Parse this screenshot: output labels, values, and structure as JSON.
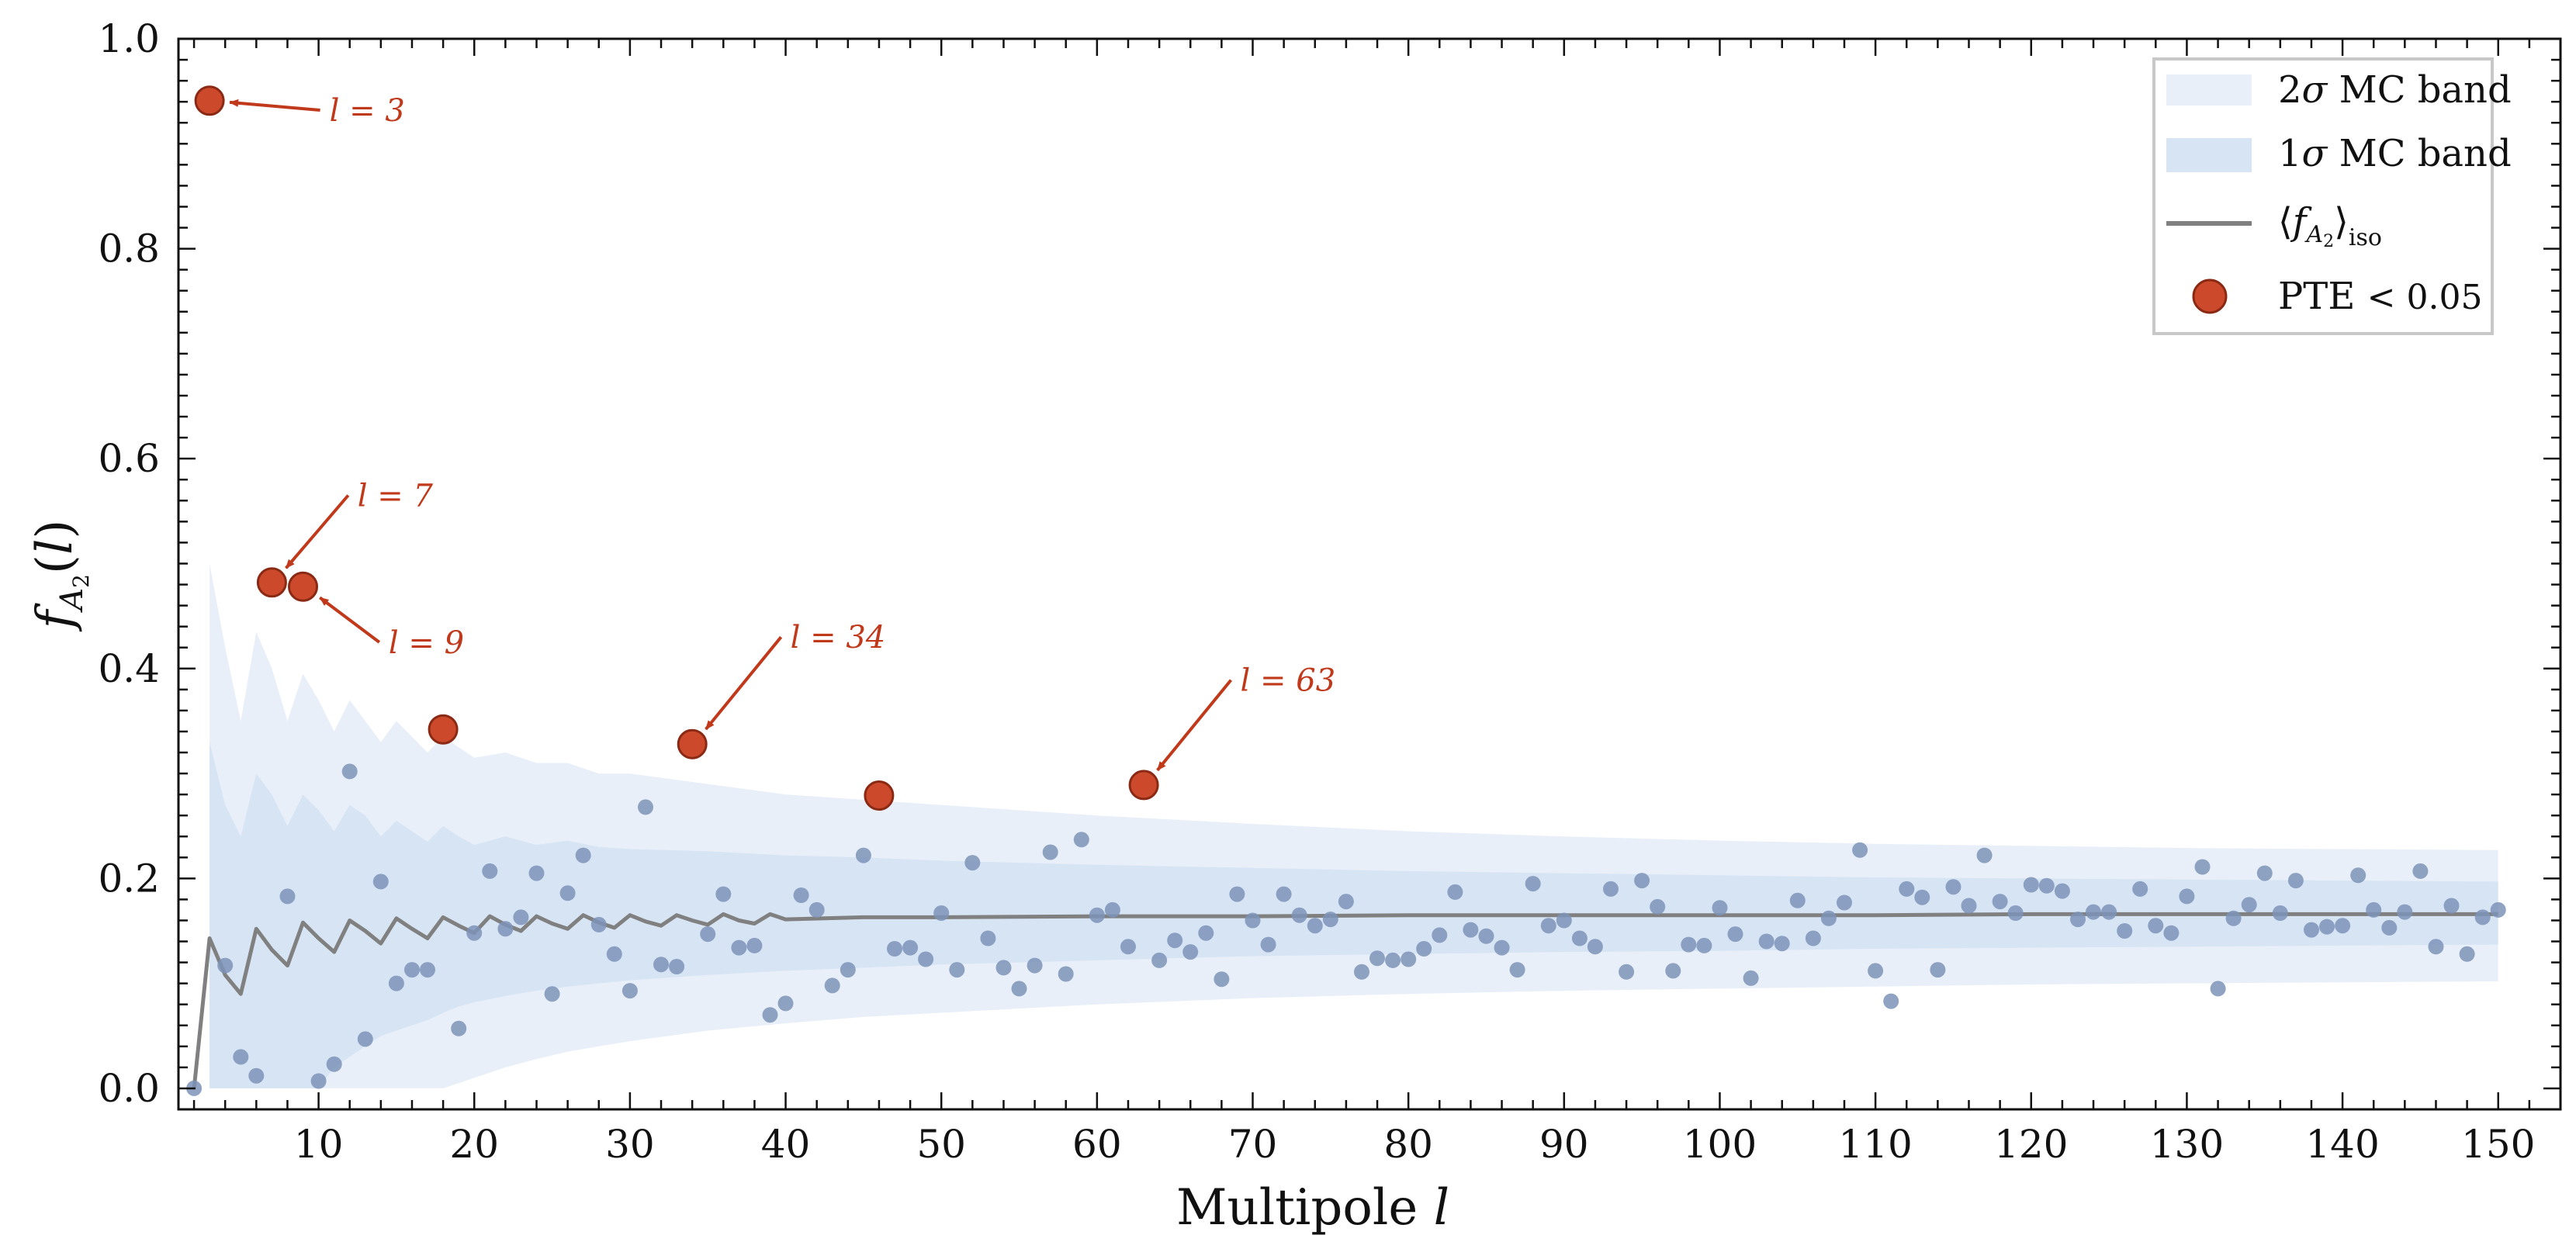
{
  "chart_data": {
    "type": "scatter",
    "xlabel": "Multipole l",
    "ylabel": "f_A2(l)",
    "xlim": [
      1,
      154
    ],
    "ylim": [
      -0.02,
      1.0
    ],
    "xticks": [
      10,
      20,
      30,
      40,
      50,
      60,
      70,
      80,
      90,
      100,
      110,
      120,
      130,
      140,
      150
    ],
    "yticks": [
      0.0,
      0.2,
      0.4,
      0.6,
      0.8,
      1.0
    ],
    "ytick_labels": [
      "0.0",
      "0.2",
      "0.4",
      "0.6",
      "0.8",
      "1.0"
    ],
    "grid": false,
    "legend_position": "top-right",
    "legend": [
      {
        "key": "band2",
        "label": "2σ MC band"
      },
      {
        "key": "band1",
        "label": "1σ MC band"
      },
      {
        "key": "mean",
        "label": "⟨f_A2⟩_iso"
      },
      {
        "key": "pte",
        "label": "PTE < 0.05"
      }
    ],
    "colors": {
      "band2": "#e9eff9",
      "band1": "#d6e4f4",
      "mean": "#808080",
      "points": "#7d93b7",
      "pte_fill": "#cc4a2b",
      "pte_edge": "#8a2a14",
      "annotation": "#c0391b"
    },
    "mean_curve": {
      "x": [
        2,
        3,
        4,
        5,
        6,
        7,
        8,
        9,
        10,
        11,
        12,
        13,
        14,
        15,
        16,
        17,
        18,
        19,
        20,
        21,
        22,
        23,
        24,
        25,
        26,
        27,
        28,
        29,
        30,
        31,
        32,
        33,
        34,
        35,
        36,
        37,
        38,
        39,
        40,
        45,
        50,
        60,
        70,
        80,
        90,
        100,
        110,
        120,
        130,
        140,
        150
      ],
      "y": [
        0.0,
        0.143,
        0.108,
        0.09,
        0.152,
        0.132,
        0.117,
        0.158,
        0.143,
        0.13,
        0.16,
        0.15,
        0.138,
        0.162,
        0.152,
        0.143,
        0.163,
        0.155,
        0.148,
        0.164,
        0.156,
        0.15,
        0.164,
        0.157,
        0.152,
        0.165,
        0.158,
        0.153,
        0.165,
        0.159,
        0.155,
        0.165,
        0.16,
        0.156,
        0.166,
        0.16,
        0.157,
        0.166,
        0.161,
        0.163,
        0.163,
        0.164,
        0.164,
        0.165,
        0.165,
        0.165,
        0.165,
        0.166,
        0.166,
        0.166,
        0.166
      ]
    },
    "band_1sigma": {
      "x": [
        3,
        4,
        5,
        6,
        7,
        8,
        9,
        10,
        11,
        12,
        13,
        14,
        15,
        16,
        17,
        18,
        19,
        20,
        22,
        24,
        26,
        28,
        30,
        35,
        40,
        45,
        50,
        60,
        70,
        80,
        90,
        100,
        110,
        120,
        130,
        140,
        150
      ],
      "lower": [
        0.0,
        0.0,
        0.0,
        0.0,
        0.0,
        0.0,
        0.0,
        0.0,
        0.02,
        0.03,
        0.04,
        0.05,
        0.055,
        0.06,
        0.065,
        0.072,
        0.078,
        0.082,
        0.088,
        0.093,
        0.097,
        0.1,
        0.103,
        0.108,
        0.112,
        0.115,
        0.118,
        0.122,
        0.126,
        0.128,
        0.13,
        0.131,
        0.133,
        0.134,
        0.135,
        0.136,
        0.137
      ],
      "upper": [
        0.33,
        0.27,
        0.24,
        0.3,
        0.28,
        0.25,
        0.28,
        0.265,
        0.245,
        0.27,
        0.26,
        0.24,
        0.255,
        0.245,
        0.235,
        0.25,
        0.24,
        0.232,
        0.24,
        0.232,
        0.236,
        0.23,
        0.228,
        0.226,
        0.222,
        0.22,
        0.217,
        0.213,
        0.21,
        0.207,
        0.205,
        0.203,
        0.201,
        0.2,
        0.199,
        0.198,
        0.197
      ]
    },
    "band_2sigma": {
      "x": [
        3,
        4,
        5,
        6,
        7,
        8,
        9,
        10,
        11,
        12,
        13,
        14,
        15,
        16,
        17,
        18,
        19,
        20,
        22,
        24,
        26,
        28,
        30,
        35,
        40,
        45,
        50,
        60,
        70,
        80,
        90,
        100,
        110,
        120,
        130,
        140,
        150
      ],
      "lower": [
        0.0,
        0.0,
        0.0,
        0.0,
        0.0,
        0.0,
        0.0,
        0.0,
        0.0,
        0.0,
        0.0,
        0.0,
        0.0,
        0.0,
        0.0,
        0.0,
        0.005,
        0.01,
        0.02,
        0.028,
        0.035,
        0.04,
        0.045,
        0.055,
        0.062,
        0.068,
        0.072,
        0.08,
        0.086,
        0.09,
        0.093,
        0.095,
        0.097,
        0.099,
        0.1,
        0.101,
        0.102
      ],
      "upper": [
        0.5,
        0.42,
        0.35,
        0.435,
        0.4,
        0.35,
        0.395,
        0.37,
        0.34,
        0.37,
        0.35,
        0.33,
        0.35,
        0.335,
        0.32,
        0.335,
        0.325,
        0.315,
        0.32,
        0.31,
        0.31,
        0.3,
        0.3,
        0.29,
        0.28,
        0.275,
        0.27,
        0.26,
        0.252,
        0.245,
        0.24,
        0.236,
        0.233,
        0.231,
        0.229,
        0.228,
        0.227
      ]
    },
    "points": [
      [
        2,
        0.0
      ],
      [
        4,
        0.117
      ],
      [
        5,
        0.03
      ],
      [
        6,
        0.012
      ],
      [
        8,
        0.183
      ],
      [
        10,
        0.007
      ],
      [
        11,
        0.023
      ],
      [
        12,
        0.302
      ],
      [
        13,
        0.047
      ],
      [
        14,
        0.197
      ],
      [
        15,
        0.1
      ],
      [
        16,
        0.113
      ],
      [
        17,
        0.113
      ],
      [
        19,
        0.057
      ],
      [
        20,
        0.148
      ],
      [
        21,
        0.207
      ],
      [
        22,
        0.152
      ],
      [
        23,
        0.163
      ],
      [
        24,
        0.205
      ],
      [
        25,
        0.09
      ],
      [
        26,
        0.186
      ],
      [
        27,
        0.222
      ],
      [
        28,
        0.156
      ],
      [
        29,
        0.128
      ],
      [
        30,
        0.093
      ],
      [
        31,
        0.268
      ],
      [
        32,
        0.118
      ],
      [
        33,
        0.116
      ],
      [
        35,
        0.147
      ],
      [
        36,
        0.185
      ],
      [
        37,
        0.134
      ],
      [
        38,
        0.136
      ],
      [
        39,
        0.07
      ],
      [
        40,
        0.081
      ],
      [
        41,
        0.184
      ],
      [
        42,
        0.17
      ],
      [
        43,
        0.098
      ],
      [
        44,
        0.113
      ],
      [
        45,
        0.222
      ],
      [
        47,
        0.133
      ],
      [
        48,
        0.134
      ],
      [
        49,
        0.123
      ],
      [
        50,
        0.167
      ],
      [
        51,
        0.113
      ],
      [
        52,
        0.215
      ],
      [
        53,
        0.143
      ],
      [
        54,
        0.115
      ],
      [
        55,
        0.095
      ],
      [
        56,
        0.117
      ],
      [
        57,
        0.225
      ],
      [
        58,
        0.109
      ],
      [
        59,
        0.237
      ],
      [
        60,
        0.165
      ],
      [
        61,
        0.17
      ],
      [
        62,
        0.135
      ],
      [
        64,
        0.122
      ],
      [
        65,
        0.141
      ],
      [
        66,
        0.13
      ],
      [
        67,
        0.148
      ],
      [
        68,
        0.104
      ],
      [
        69,
        0.185
      ],
      [
        70,
        0.16
      ],
      [
        71,
        0.137
      ],
      [
        72,
        0.185
      ],
      [
        73,
        0.165
      ],
      [
        74,
        0.155
      ],
      [
        75,
        0.161
      ],
      [
        76,
        0.178
      ],
      [
        77,
        0.111
      ],
      [
        78,
        0.124
      ],
      [
        79,
        0.122
      ],
      [
        80,
        0.123
      ],
      [
        81,
        0.133
      ],
      [
        82,
        0.146
      ],
      [
        83,
        0.187
      ],
      [
        84,
        0.151
      ],
      [
        85,
        0.145
      ],
      [
        86,
        0.134
      ],
      [
        87,
        0.113
      ],
      [
        88,
        0.195
      ],
      [
        89,
        0.155
      ],
      [
        90,
        0.16
      ],
      [
        91,
        0.143
      ],
      [
        92,
        0.135
      ],
      [
        93,
        0.19
      ],
      [
        94,
        0.111
      ],
      [
        95,
        0.198
      ],
      [
        96,
        0.173
      ],
      [
        97,
        0.112
      ],
      [
        98,
        0.137
      ],
      [
        99,
        0.136
      ],
      [
        100,
        0.172
      ],
      [
        101,
        0.147
      ],
      [
        102,
        0.105
      ],
      [
        103,
        0.14
      ],
      [
        104,
        0.138
      ],
      [
        105,
        0.179
      ],
      [
        106,
        0.143
      ],
      [
        107,
        0.162
      ],
      [
        108,
        0.177
      ],
      [
        109,
        0.227
      ],
      [
        110,
        0.112
      ],
      [
        111,
        0.083
      ],
      [
        112,
        0.19
      ],
      [
        113,
        0.182
      ],
      [
        114,
        0.113
      ],
      [
        115,
        0.192
      ],
      [
        116,
        0.174
      ],
      [
        117,
        0.222
      ],
      [
        118,
        0.178
      ],
      [
        119,
        0.167
      ],
      [
        120,
        0.194
      ],
      [
        121,
        0.193
      ],
      [
        122,
        0.188
      ],
      [
        123,
        0.161
      ],
      [
        124,
        0.168
      ],
      [
        125,
        0.168
      ],
      [
        126,
        0.15
      ],
      [
        127,
        0.19
      ],
      [
        128,
        0.155
      ],
      [
        129,
        0.148
      ],
      [
        130,
        0.183
      ],
      [
        131,
        0.211
      ],
      [
        132,
        0.095
      ],
      [
        133,
        0.162
      ],
      [
        134,
        0.175
      ],
      [
        135,
        0.205
      ],
      [
        136,
        0.167
      ],
      [
        137,
        0.198
      ],
      [
        138,
        0.151
      ],
      [
        139,
        0.154
      ],
      [
        140,
        0.155
      ],
      [
        141,
        0.203
      ],
      [
        142,
        0.17
      ],
      [
        143,
        0.153
      ],
      [
        144,
        0.168
      ],
      [
        145,
        0.207
      ],
      [
        146,
        0.135
      ],
      [
        147,
        0.174
      ],
      [
        148,
        0.128
      ],
      [
        149,
        0.163
      ],
      [
        150,
        0.17
      ]
    ],
    "pte_points": [
      [
        3,
        0.941
      ],
      [
        7,
        0.482
      ],
      [
        9,
        0.478
      ],
      [
        18,
        0.342
      ],
      [
        34,
        0.328
      ],
      [
        46,
        0.279
      ],
      [
        63,
        0.289
      ]
    ],
    "annotations": [
      {
        "text": "l = 3",
        "x": 3,
        "y": 0.941,
        "tx": 10.7,
        "ty": 0.932,
        "ha": "start"
      },
      {
        "text": "l = 7",
        "x": 7,
        "y": 0.482,
        "tx": 12.5,
        "ty": 0.565,
        "ha": "start"
      },
      {
        "text": "l = 9",
        "x": 9,
        "y": 0.478,
        "tx": 14.5,
        "ty": 0.425,
        "ha": "start"
      },
      {
        "text": "l = 34",
        "x": 34,
        "y": 0.328,
        "tx": 40.3,
        "ty": 0.43,
        "ha": "start"
      },
      {
        "text": "l = 63",
        "x": 63,
        "y": 0.289,
        "tx": 69.2,
        "ty": 0.389,
        "ha": "start"
      }
    ]
  }
}
